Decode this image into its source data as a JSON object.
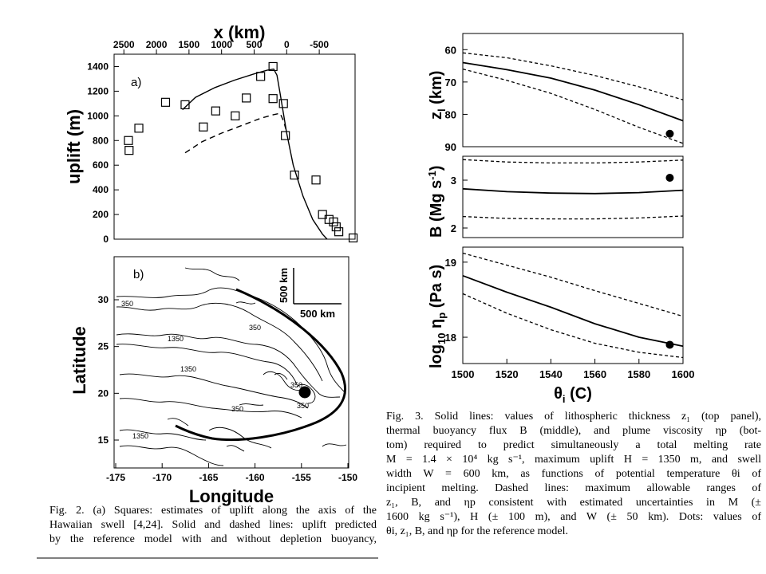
{
  "fig2a": {
    "panel_label": "a)",
    "top_axis_label": "x (km)",
    "top_ticks": [
      "2500",
      "2000",
      "1500",
      "1000",
      "500",
      "0",
      "-500"
    ],
    "ylabel": "uplift (m)",
    "y_ticks": [
      "0",
      "200",
      "400",
      "600",
      "800",
      "1000",
      "1200",
      "1400"
    ]
  },
  "fig2b": {
    "panel_label": "b)",
    "xlabel": "Longitude",
    "ylabel": "Latitude",
    "x_ticks": [
      "-175",
      "-170",
      "-165",
      "-160",
      "-155",
      "-150"
    ],
    "y_ticks": [
      "15",
      "20",
      "25",
      "30"
    ],
    "scale_vertical": "500 km",
    "scale_horizontal": "500 km",
    "contour_labels": [
      "350",
      "350",
      "1350",
      "1350",
      "350",
      "350",
      "1350",
      "350"
    ]
  },
  "fig3": {
    "top": {
      "ylabel_main": "z",
      "ylabel_sub": "l",
      "ylabel_unit": " (km)",
      "y_ticks": [
        "60",
        "70",
        "80",
        "90"
      ]
    },
    "middle": {
      "ylabel": "B (Mg s",
      "ylabel_exp": "-1",
      "ylabel_end": ")",
      "y_ticks": [
        "2",
        "3"
      ]
    },
    "bottom": {
      "ylabel_pre": "log",
      "ylabel_sub1": "10",
      "ylabel_mid": " η",
      "ylabel_sub2": "p",
      "ylabel_end": " (Pa s)",
      "y_ticks": [
        "18",
        "19"
      ]
    },
    "xlabel_main": "θ",
    "xlabel_sub": "i",
    "xlabel_end": " (C)",
    "x_ticks": [
      "1500",
      "1520",
      "1540",
      "1560",
      "1580",
      "1600"
    ]
  },
  "captions": {
    "fig3": [
      "Fig. 3. Solid lines: values of lithospheric thickness z₁ (top panel),",
      "thermal buoyancy flux B (middle), and plume viscosity ηp (bot-",
      "tom) required to predict simultaneously a total melting rate",
      "M = 1.4 × 10⁴ kg s⁻¹, maximum uplift H = 1350 m, and swell",
      "width W = 600 km, as functions of potential temperature θi of",
      "incipient melting. Dashed lines: maximum allowable ranges of",
      "z₁, B, and ηp consistent with estimated uncertainties in M (±",
      "1600 kg s⁻¹), H (± 100 m), and W (± 50 km). Dots: values of",
      "θi, z₁, B, and ηp for the reference model."
    ],
    "fig2": [
      "Fig. 2. (a) Squares: estimates of uplift along the axis of the",
      "Hawaiian swell [4,24]. Solid and dashed lines: uplift predicted",
      "by the reference model with and without depletion buoyancy,"
    ]
  },
  "chart_data": [
    {
      "type": "scatter",
      "panel": "a)",
      "title": "",
      "xlabel": "x (km)",
      "ylabel": "uplift (m)",
      "xlim": [
        2650,
        -1050
      ],
      "ylim": [
        0,
        1500
      ],
      "series": [
        {
          "marker": "square",
          "points": [
            [
              2430,
              800
            ],
            [
              2420,
              720
            ],
            [
              2270,
              900
            ],
            [
              1860,
              1110
            ],
            [
              1560,
              1090
            ],
            [
              1280,
              910
            ],
            [
              1090,
              1040
            ],
            [
              790,
              1000
            ],
            [
              620,
              1145
            ],
            [
              400,
              1320
            ],
            [
              210,
              1400
            ],
            [
              210,
              1140
            ],
            [
              50,
              1100
            ],
            [
              20,
              840
            ],
            [
              -120,
              520
            ],
            [
              -450,
              480
            ],
            [
              -550,
              200
            ],
            [
              -650,
              160
            ],
            [
              -720,
              140
            ],
            [
              -760,
              100
            ],
            [
              -800,
              60
            ],
            [
              -1020,
              10
            ]
          ]
        },
        {
          "line": "solid",
          "points": [
            [
              1600,
              1050
            ],
            [
              1400,
              1150
            ],
            [
              1100,
              1230
            ],
            [
              800,
              1290
            ],
            [
              500,
              1340
            ],
            [
              300,
              1370
            ],
            [
              200,
              1380
            ],
            [
              150,
              1330
            ],
            [
              100,
              1180
            ],
            [
              0,
              860
            ],
            [
              -100,
              600
            ],
            [
              -250,
              350
            ],
            [
              -400,
              160
            ],
            [
              -550,
              40
            ],
            [
              -620,
              0
            ]
          ]
        },
        {
          "line": "dashed",
          "points": [
            [
              1560,
              700
            ],
            [
              1300,
              790
            ],
            [
              1000,
              860
            ],
            [
              700,
              920
            ],
            [
              400,
              980
            ],
            [
              200,
              1010
            ],
            [
              100,
              1020
            ],
            [
              50,
              960
            ],
            [
              0,
              870
            ]
          ]
        }
      ]
    },
    {
      "type": "line",
      "panel": "top",
      "xlabel": "θi (C)",
      "ylabel": "zl (km)",
      "xlim": [
        1500,
        1600
      ],
      "ylim": [
        90,
        55
      ],
      "series": [
        {
          "line": "solid",
          "x": [
            1500,
            1520,
            1540,
            1560,
            1580,
            1600
          ],
          "y": [
            64,
            66.2,
            68.8,
            72.5,
            77,
            82
          ]
        },
        {
          "line": "dashed",
          "x": [
            1500,
            1520,
            1540,
            1560,
            1580,
            1600
          ],
          "y": [
            61,
            62.5,
            65,
            68,
            71.5,
            75.5
          ]
        },
        {
          "line": "dashed",
          "x": [
            1500,
            1520,
            1540,
            1560,
            1580,
            1600
          ],
          "y": [
            66,
            69.5,
            73.5,
            78.5,
            84,
            89
          ]
        },
        {
          "marker": "dot",
          "x": [
            1594
          ],
          "y": [
            86
          ]
        }
      ]
    },
    {
      "type": "line",
      "panel": "middle",
      "xlabel": "θi (C)",
      "ylabel": "B (Mg s-1)",
      "xlim": [
        1500,
        1600
      ],
      "ylim": [
        1.8,
        3.5
      ],
      "series": [
        {
          "line": "solid",
          "x": [
            1500,
            1520,
            1540,
            1560,
            1580,
            1600
          ],
          "y": [
            2.82,
            2.76,
            2.73,
            2.72,
            2.74,
            2.79
          ]
        },
        {
          "line": "dashed",
          "x": [
            1500,
            1520,
            1540,
            1560,
            1580,
            1600
          ],
          "y": [
            3.43,
            3.38,
            3.36,
            3.36,
            3.38,
            3.42
          ]
        },
        {
          "line": "dashed",
          "x": [
            1500,
            1520,
            1540,
            1560,
            1580,
            1600
          ],
          "y": [
            2.24,
            2.2,
            2.19,
            2.19,
            2.21,
            2.25
          ]
        },
        {
          "marker": "dot",
          "x": [
            1594
          ],
          "y": [
            3.05
          ]
        }
      ]
    },
    {
      "type": "line",
      "panel": "bottom",
      "xlabel": "θi (C)",
      "ylabel": "log10 ηp (Pa s)",
      "xlim": [
        1500,
        1600
      ],
      "ylim": [
        17.65,
        19.2
      ],
      "series": [
        {
          "line": "solid",
          "x": [
            1500,
            1520,
            1540,
            1560,
            1580,
            1600
          ],
          "y": [
            18.82,
            18.6,
            18.4,
            18.18,
            18.0,
            17.88
          ]
        },
        {
          "line": "dashed",
          "x": [
            1500,
            1520,
            1540,
            1560,
            1580,
            1600
          ],
          "y": [
            19.12,
            18.96,
            18.8,
            18.62,
            18.45,
            18.28
          ]
        },
        {
          "line": "dashed",
          "x": [
            1500,
            1520,
            1540,
            1560,
            1580,
            1600
          ],
          "y": [
            18.58,
            18.32,
            18.1,
            17.92,
            17.8,
            17.73
          ]
        },
        {
          "marker": "dot",
          "x": [
            1594
          ],
          "y": [
            17.9
          ]
        }
      ]
    }
  ]
}
